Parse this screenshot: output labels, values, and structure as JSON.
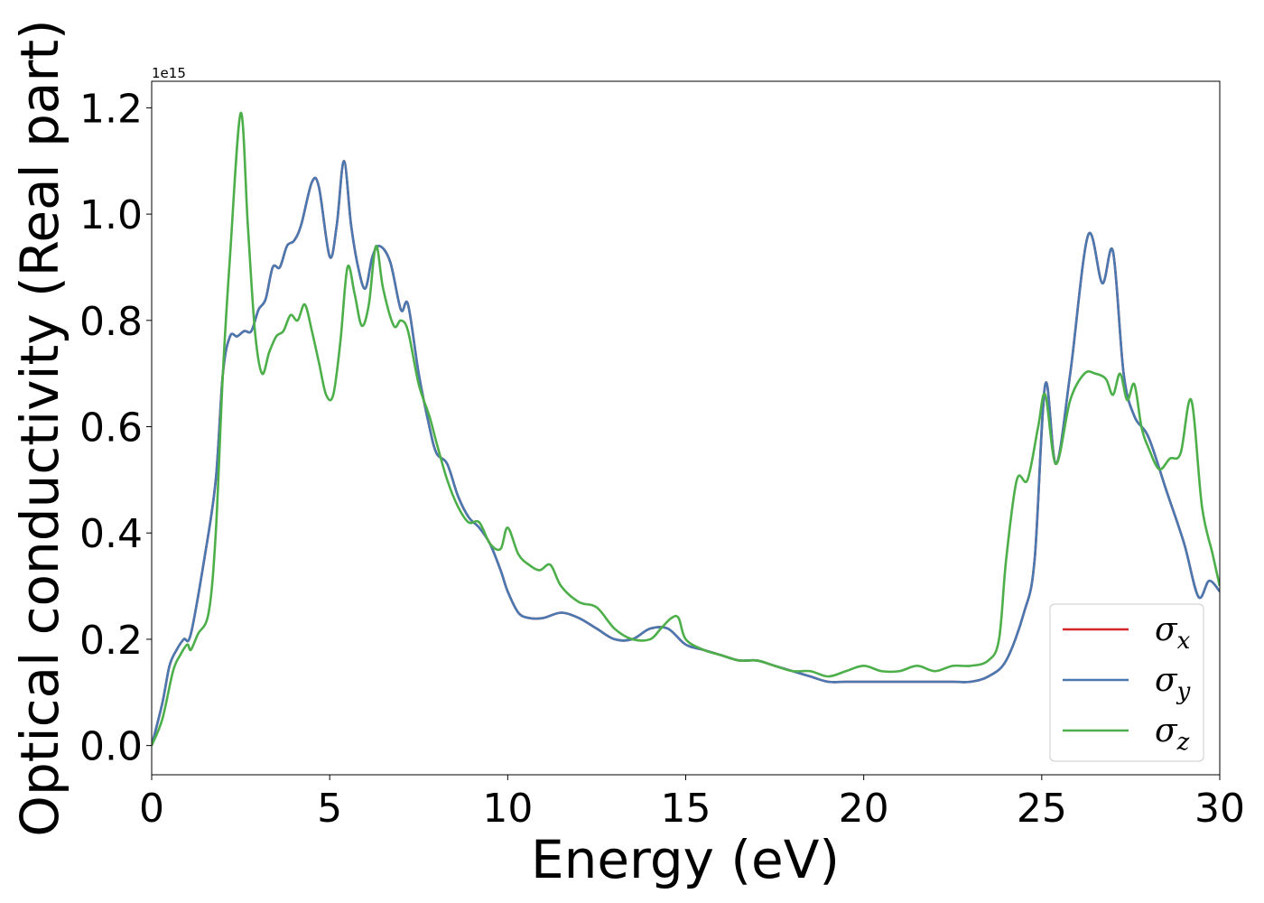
{
  "chart_data": {
    "type": "line",
    "xlabel": "Energy (eV)",
    "ylabel": "Optical conductivity (Real part)",
    "offset_text": "1e15",
    "xlim": [
      0,
      30
    ],
    "ylim": [
      -0.055,
      1.25
    ],
    "xticks": [
      0,
      5,
      10,
      15,
      20,
      25,
      30
    ],
    "xtick_labels": [
      "0",
      "5",
      "10",
      "15",
      "20",
      "25",
      "30"
    ],
    "yticks": [
      0.0,
      0.2,
      0.4,
      0.6,
      0.8,
      1.0,
      1.2
    ],
    "ytick_labels": [
      "0.0",
      "0.2",
      "0.4",
      "0.6",
      "0.8",
      "1.0",
      "1.2"
    ],
    "grid": false,
    "legend_position": "bottom-right",
    "series": [
      {
        "name": "σ",
        "subscript": "x",
        "color": "#d62728",
        "x": [
          0,
          0.3,
          0.5,
          0.7,
          0.9,
          1.1,
          1.5,
          1.8,
          2.0,
          2.2,
          2.4,
          2.6,
          2.8,
          3.0,
          3.2,
          3.4,
          3.6,
          3.8,
          4.0,
          4.2,
          4.5,
          4.7,
          5.0,
          5.2,
          5.4,
          5.6,
          5.8,
          6.0,
          6.2,
          6.4,
          6.7,
          7.0,
          7.2,
          7.5,
          7.8,
          8.0,
          8.3,
          8.6,
          8.9,
          9.2,
          9.5,
          9.8,
          10.0,
          10.3,
          10.6,
          11.0,
          11.5,
          12.0,
          12.5,
          13.0,
          13.5,
          14.0,
          14.5,
          15.0,
          15.5,
          16.0,
          16.5,
          17.0,
          17.5,
          18.0,
          18.5,
          19.0,
          19.5,
          20.0,
          20.5,
          21.0,
          21.5,
          22.0,
          22.5,
          23.0,
          23.5,
          24.0,
          24.5,
          24.8,
          25.1,
          25.4,
          25.8,
          26.3,
          26.7,
          27.0,
          27.3,
          27.6,
          28.0,
          28.5,
          29.0,
          29.4,
          29.7,
          30.0
        ],
        "values": [
          0.0,
          0.08,
          0.15,
          0.18,
          0.2,
          0.21,
          0.36,
          0.5,
          0.7,
          0.77,
          0.77,
          0.78,
          0.78,
          0.82,
          0.84,
          0.9,
          0.9,
          0.94,
          0.95,
          0.98,
          1.06,
          1.05,
          0.92,
          0.98,
          1.1,
          0.98,
          0.9,
          0.86,
          0.92,
          0.94,
          0.91,
          0.82,
          0.83,
          0.7,
          0.6,
          0.55,
          0.53,
          0.47,
          0.43,
          0.41,
          0.38,
          0.33,
          0.29,
          0.25,
          0.24,
          0.24,
          0.25,
          0.24,
          0.22,
          0.2,
          0.2,
          0.22,
          0.22,
          0.19,
          0.18,
          0.17,
          0.16,
          0.16,
          0.15,
          0.14,
          0.13,
          0.12,
          0.12,
          0.12,
          0.12,
          0.12,
          0.12,
          0.12,
          0.12,
          0.12,
          0.13,
          0.16,
          0.25,
          0.35,
          0.68,
          0.53,
          0.7,
          0.96,
          0.87,
          0.93,
          0.7,
          0.62,
          0.58,
          0.48,
          0.38,
          0.28,
          0.31,
          0.29
        ]
      },
      {
        "name": "σ",
        "subscript": "y",
        "color": "#4a78b0",
        "x": [
          0,
          0.3,
          0.5,
          0.7,
          0.9,
          1.1,
          1.5,
          1.8,
          2.0,
          2.2,
          2.4,
          2.6,
          2.8,
          3.0,
          3.2,
          3.4,
          3.6,
          3.8,
          4.0,
          4.2,
          4.5,
          4.7,
          5.0,
          5.2,
          5.4,
          5.6,
          5.8,
          6.0,
          6.2,
          6.4,
          6.7,
          7.0,
          7.2,
          7.5,
          7.8,
          8.0,
          8.3,
          8.6,
          8.9,
          9.2,
          9.5,
          9.8,
          10.0,
          10.3,
          10.6,
          11.0,
          11.5,
          12.0,
          12.5,
          13.0,
          13.5,
          14.0,
          14.5,
          15.0,
          15.5,
          16.0,
          16.5,
          17.0,
          17.5,
          18.0,
          18.5,
          19.0,
          19.5,
          20.0,
          20.5,
          21.0,
          21.5,
          22.0,
          22.5,
          23.0,
          23.5,
          24.0,
          24.5,
          24.8,
          25.1,
          25.4,
          25.8,
          26.3,
          26.7,
          27.0,
          27.3,
          27.6,
          28.0,
          28.5,
          29.0,
          29.4,
          29.7,
          30.0
        ],
        "values": [
          0.0,
          0.08,
          0.15,
          0.18,
          0.2,
          0.21,
          0.36,
          0.5,
          0.7,
          0.77,
          0.77,
          0.78,
          0.78,
          0.82,
          0.84,
          0.9,
          0.9,
          0.94,
          0.95,
          0.98,
          1.06,
          1.05,
          0.92,
          0.98,
          1.1,
          0.98,
          0.9,
          0.86,
          0.92,
          0.94,
          0.91,
          0.82,
          0.83,
          0.7,
          0.6,
          0.55,
          0.53,
          0.47,
          0.43,
          0.41,
          0.38,
          0.33,
          0.29,
          0.25,
          0.24,
          0.24,
          0.25,
          0.24,
          0.22,
          0.2,
          0.2,
          0.22,
          0.22,
          0.19,
          0.18,
          0.17,
          0.16,
          0.16,
          0.15,
          0.14,
          0.13,
          0.12,
          0.12,
          0.12,
          0.12,
          0.12,
          0.12,
          0.12,
          0.12,
          0.12,
          0.13,
          0.16,
          0.25,
          0.35,
          0.68,
          0.53,
          0.7,
          0.96,
          0.87,
          0.93,
          0.7,
          0.62,
          0.58,
          0.48,
          0.38,
          0.28,
          0.31,
          0.29
        ]
      },
      {
        "name": "σ",
        "subscript": "z",
        "color": "#4daf4a",
        "x": [
          0,
          0.3,
          0.6,
          0.8,
          1.0,
          1.1,
          1.3,
          1.6,
          1.8,
          2.0,
          2.2,
          2.5,
          2.7,
          2.9,
          3.1,
          3.3,
          3.5,
          3.7,
          3.9,
          4.1,
          4.3,
          4.5,
          4.7,
          4.9,
          5.1,
          5.3,
          5.5,
          5.7,
          5.9,
          6.1,
          6.3,
          6.5,
          6.8,
          7.0,
          7.2,
          7.5,
          7.8,
          8.0,
          8.3,
          8.6,
          8.9,
          9.2,
          9.5,
          9.8,
          10.0,
          10.3,
          10.6,
          10.9,
          11.2,
          11.5,
          12.0,
          12.5,
          13.0,
          13.5,
          14.0,
          14.3,
          14.6,
          14.8,
          15.0,
          15.5,
          16.0,
          16.5,
          17.0,
          17.5,
          18.0,
          18.5,
          19.0,
          19.5,
          20.0,
          20.5,
          21.0,
          21.5,
          22.0,
          22.5,
          23.0,
          23.5,
          23.8,
          24.0,
          24.3,
          24.6,
          24.9,
          25.1,
          25.4,
          25.8,
          26.2,
          26.5,
          26.8,
          27.0,
          27.2,
          27.4,
          27.6,
          27.8,
          28.0,
          28.3,
          28.6,
          28.9,
          29.2,
          29.5,
          29.8,
          30.0
        ],
        "values": [
          0.0,
          0.05,
          0.14,
          0.17,
          0.19,
          0.18,
          0.21,
          0.25,
          0.4,
          0.7,
          0.92,
          1.19,
          0.98,
          0.78,
          0.7,
          0.74,
          0.77,
          0.78,
          0.81,
          0.8,
          0.83,
          0.78,
          0.72,
          0.66,
          0.66,
          0.76,
          0.9,
          0.85,
          0.79,
          0.83,
          0.94,
          0.86,
          0.79,
          0.8,
          0.78,
          0.68,
          0.62,
          0.57,
          0.5,
          0.45,
          0.42,
          0.42,
          0.38,
          0.37,
          0.41,
          0.36,
          0.34,
          0.33,
          0.34,
          0.3,
          0.27,
          0.26,
          0.22,
          0.2,
          0.2,
          0.22,
          0.24,
          0.24,
          0.2,
          0.18,
          0.17,
          0.16,
          0.16,
          0.15,
          0.14,
          0.14,
          0.13,
          0.14,
          0.15,
          0.14,
          0.14,
          0.15,
          0.14,
          0.15,
          0.15,
          0.16,
          0.2,
          0.35,
          0.5,
          0.5,
          0.6,
          0.66,
          0.53,
          0.65,
          0.7,
          0.7,
          0.69,
          0.66,
          0.7,
          0.65,
          0.68,
          0.6,
          0.56,
          0.52,
          0.54,
          0.55,
          0.65,
          0.45,
          0.36,
          0.3
        ]
      }
    ]
  }
}
